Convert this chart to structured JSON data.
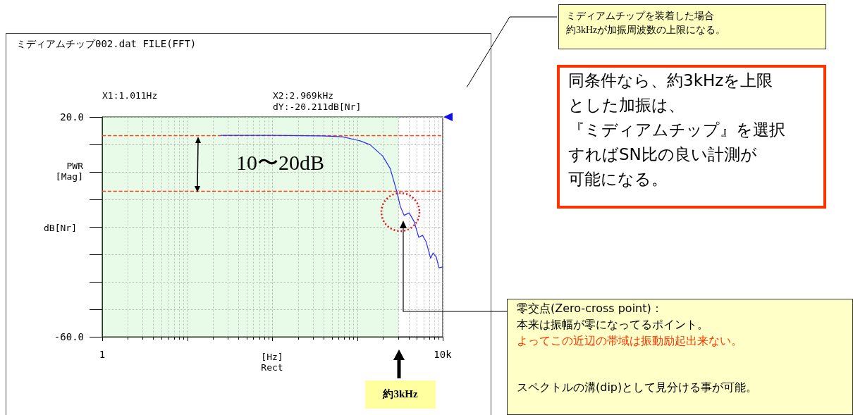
{
  "chart_data": {
    "type": "line",
    "title": "ミディアムチップ002.dat FILE(FFT)",
    "xlabel": "[Hz]\nRect",
    "ylabel": "PWR\n[Mag]",
    "x": [
      24.8,
      100,
      385,
      665,
      1070,
      1400,
      1970,
      2420,
      2910,
      3180,
      3520,
      4040,
      4620,
      5230,
      5800,
      6380,
      7210,
      7710,
      8380,
      9030,
      10000
    ],
    "series": [
      {
        "color": "#2a2aff",
        "values": [
          13.3,
          13.3,
          13.1,
          12.8,
          11.3,
          9.9,
          5.8,
          1.2,
          -7.5,
          -12.6,
          -15.8,
          -14.9,
          -18.1,
          -23.8,
          -23.1,
          -25.4,
          -31.4,
          -29.5,
          -30.9,
          -34.9,
          -34.6
        ]
      }
    ],
    "log": "x",
    "xlim": [
      1,
      10000
    ],
    "xticks": [
      1,
      {
        "value": 10,
        "label": null
      },
      {
        "value": 100,
        "label": null
      },
      {
        "value": 1000,
        "label": null
      },
      {
        "value": 10000,
        "label": "10k"
      }
    ],
    "ylim": [
      -60,
      20
    ],
    "yticks": [
      {
        "value": 20,
        "label": "20.0"
      },
      {
        "value": 10,
        "label": null
      },
      {
        "value": 0,
        "label": null
      },
      {
        "value": -10,
        "label": null
      },
      {
        "value": -20,
        "label": null
      },
      {
        "value": -30,
        "label": null
      },
      {
        "value": -40,
        "label": null
      },
      {
        "value": -50,
        "label": null
      },
      {
        "value": -60,
        "label": "-60.0"
      }
    ],
    "grid": true,
    "marker": "none",
    "line_style": "solid",
    "bands": [
      {
        "axis": "x",
        "from": 1.011,
        "to": 2969,
        "color": "#80e880"
      }
    ],
    "ref_lines": [
      {
        "axis": "y",
        "value": 13.3,
        "color": "#ff4020",
        "line_style": "dashed"
      },
      {
        "axis": "y",
        "value": -7,
        "color": "#ff4020",
        "line_style": "dashed"
      }
    ],
    "annotations": [
      "X1:1.011Hz",
      "X2:2.969kHz",
      "dY:-20.211dB[Nr]",
      "dB[Nr]",
      "10〜20dB",
      "ミディアムチップを装着した場合",
      "約3kHzが加振周波数の上限になる。",
      "同条件なら、約3kHzを上限",
      "とした加振は、",
      "『ミディアムチップ』を選択",
      "すればSN比の良い計測が",
      "可能になる。",
      "約3kHz",
      "零交点(Zero-cross point)：",
      "本来は振幅が零になってるポイント。",
      "よってこの近辺の帯域は振動励起出来ない。",
      "スペクトルの溝(dip)として見分ける事が可能。"
    ]
  }
}
